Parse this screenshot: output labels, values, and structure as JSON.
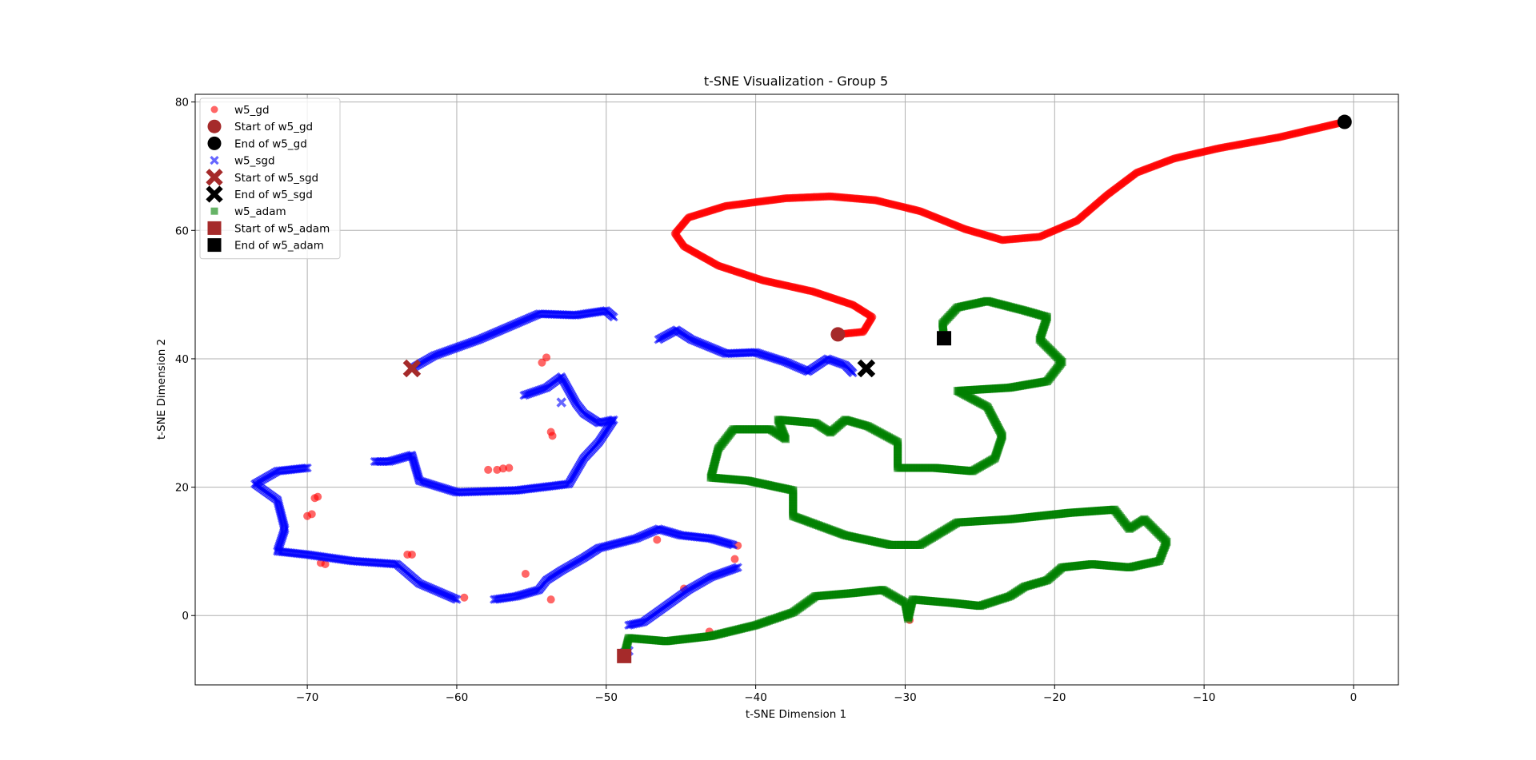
{
  "chart_data": {
    "type": "scatter",
    "title": "t-SNE Visualization - Group 5",
    "xlabel": "t-SNE Dimension 1",
    "ylabel": "t-SNE Dimension 2",
    "xlim": [
      -77.5,
      3
    ],
    "ylim": [
      -10.8,
      81.2
    ],
    "xticks": [
      -70,
      -60,
      -50,
      -40,
      -30,
      -20,
      -10,
      0
    ],
    "yticks": [
      0,
      20,
      40,
      60,
      80
    ],
    "xtick_labels": [
      "−70",
      "−60",
      "−50",
      "−40",
      "−30",
      "−20",
      "−10",
      "0"
    ],
    "ytick_labels": [
      "0",
      "20",
      "40",
      "60",
      "80"
    ],
    "grid": true,
    "legend_position": "top-left",
    "colors": {
      "gd": "#ff0000",
      "sgd": "#0000ff",
      "adam": "#008000",
      "start": "#a52a2a",
      "end": "#000000"
    },
    "legend": [
      {
        "label": "w5_gd",
        "marker": "circle",
        "color": "#ff0000",
        "alpha": 0.6,
        "big": false
      },
      {
        "label": "Start of w5_gd",
        "marker": "circle",
        "color": "#a52a2a",
        "alpha": 1,
        "big": true
      },
      {
        "label": "End of w5_gd",
        "marker": "circle",
        "color": "#000000",
        "alpha": 1,
        "big": true
      },
      {
        "label": "w5_sgd",
        "marker": "x",
        "color": "#0000ff",
        "alpha": 0.6,
        "big": false
      },
      {
        "label": "Start of w5_sgd",
        "marker": "x",
        "color": "#a52a2a",
        "alpha": 1,
        "big": true
      },
      {
        "label": "End of w5_sgd",
        "marker": "x",
        "color": "#000000",
        "alpha": 1,
        "big": true
      },
      {
        "label": "w5_adam",
        "marker": "square",
        "color": "#008000",
        "alpha": 0.6,
        "big": false
      },
      {
        "label": "Start of w5_adam",
        "marker": "square",
        "color": "#a52a2a",
        "alpha": 1,
        "big": true
      },
      {
        "label": "End of w5_adam",
        "marker": "square",
        "color": "#000000",
        "alpha": 1,
        "big": true
      }
    ],
    "series": [
      {
        "name": "w5_gd",
        "marker": "circle",
        "color": "#ff0000",
        "path": [
          [
            -34.5,
            43.8
          ],
          [
            -32.8,
            44.2
          ],
          [
            -32.2,
            46.5
          ],
          [
            -33.5,
            48.4
          ],
          [
            -36.2,
            50.5
          ],
          [
            -39.5,
            52.2
          ],
          [
            -42.5,
            54.5
          ],
          [
            -44.8,
            57.5
          ],
          [
            -45.4,
            59.5
          ],
          [
            -44.5,
            62.0
          ],
          [
            -42.0,
            63.8
          ],
          [
            -38.0,
            65.0
          ],
          [
            -35.0,
            65.3
          ],
          [
            -32.0,
            64.7
          ],
          [
            -29.0,
            63.0
          ],
          [
            -26.0,
            60.2
          ],
          [
            -23.5,
            58.5
          ],
          [
            -21.0,
            59.0
          ],
          [
            -18.5,
            61.5
          ],
          [
            -16.5,
            65.5
          ],
          [
            -14.5,
            69.0
          ],
          [
            -12.0,
            71.2
          ],
          [
            -9.0,
            72.8
          ],
          [
            -5.0,
            74.5
          ],
          [
            -0.6,
            76.9
          ]
        ],
        "scatter": [
          [
            -54.0,
            40.2
          ],
          [
            -54.3,
            39.4
          ],
          [
            -53.7,
            28.6
          ],
          [
            -53.6,
            28.0
          ],
          [
            -57.9,
            22.7
          ],
          [
            -57.3,
            22.7
          ],
          [
            -56.9,
            22.9
          ],
          [
            -56.5,
            23.0
          ],
          [
            -69.5,
            18.3
          ],
          [
            -69.3,
            18.5
          ],
          [
            -70.0,
            15.5
          ],
          [
            -69.7,
            15.8
          ],
          [
            -69.1,
            8.2
          ],
          [
            -68.8,
            8.0
          ],
          [
            -63.3,
            9.5
          ],
          [
            -63.0,
            9.5
          ],
          [
            -59.5,
            2.8
          ],
          [
            -55.4,
            6.5
          ],
          [
            -53.7,
            2.5
          ],
          [
            -46.6,
            11.8
          ],
          [
            -41.2,
            10.9
          ],
          [
            -41.4,
            8.8
          ],
          [
            -44.8,
            4.2
          ],
          [
            -43.1,
            -2.5
          ],
          [
            -29.7,
            -0.7
          ]
        ]
      },
      {
        "name": "w5_sgd",
        "marker": "x",
        "color": "#0000ff",
        "paths": [
          [
            [
              -63.0,
              38.5
            ],
            [
              -61.5,
              40.5
            ],
            [
              -58.5,
              43.0
            ],
            [
              -56.5,
              45.0
            ],
            [
              -54.5,
              47.0
            ],
            [
              -52.0,
              46.8
            ],
            [
              -50.0,
              47.5
            ],
            [
              -49.5,
              46.5
            ]
          ],
          [
            [
              -46.5,
              43.0
            ],
            [
              -45.3,
              44.5
            ],
            [
              -44.3,
              43.0
            ],
            [
              -42.0,
              40.8
            ],
            [
              -40.0,
              41.0
            ],
            [
              -38.0,
              39.5
            ],
            [
              -36.5,
              38.0
            ],
            [
              -35.2,
              40.0
            ],
            [
              -34.0,
              39.0
            ],
            [
              -33.5,
              37.8
            ]
          ],
          [
            [
              -55.5,
              34.3
            ],
            [
              -54.0,
              35.5
            ],
            [
              -53.0,
              37.2
            ],
            [
              -52.0,
              33.0
            ],
            [
              -51.5,
              31.5
            ],
            [
              -50.5,
              30.0
            ],
            [
              -49.5,
              30.5
            ],
            [
              -50.5,
              27.0
            ],
            [
              -51.5,
              24.5
            ],
            [
              -52.5,
              20.5
            ],
            [
              -56.0,
              19.5
            ],
            [
              -60.0,
              19.2
            ],
            [
              -62.5,
              21.0
            ],
            [
              -63.0,
              25.0
            ],
            [
              -64.5,
              24.0
            ],
            [
              -65.5,
              24.0
            ]
          ],
          [
            [
              -70.0,
              23.0
            ],
            [
              -72.0,
              22.5
            ],
            [
              -73.5,
              20.5
            ],
            [
              -72.0,
              18.0
            ],
            [
              -71.5,
              13.5
            ],
            [
              -72.0,
              10.0
            ],
            [
              -70.0,
              9.5
            ],
            [
              -67.0,
              8.5
            ],
            [
              -64.0,
              8.0
            ],
            [
              -62.5,
              5.0
            ],
            [
              -60.5,
              3.0
            ],
            [
              -60.0,
              2.5
            ]
          ],
          [
            [
              -57.5,
              2.5
            ],
            [
              -56.0,
              3.0
            ],
            [
              -54.5,
              4.0
            ],
            [
              -54.0,
              5.5
            ],
            [
              -53.0,
              7.0
            ],
            [
              -51.5,
              9.0
            ],
            [
              -50.5,
              10.5
            ],
            [
              -48.0,
              12.0
            ],
            [
              -46.5,
              13.5
            ],
            [
              -45.0,
              12.5
            ],
            [
              -43.0,
              12.0
            ],
            [
              -41.5,
              11.0
            ]
          ],
          [
            [
              -41.2,
              7.5
            ],
            [
              -43.0,
              6.0
            ],
            [
              -44.5,
              4.0
            ],
            [
              -46.0,
              1.5
            ],
            [
              -47.5,
              -1.0
            ],
            [
              -48.5,
              -1.5
            ]
          ]
        ],
        "scatter": [
          [
            -48.8,
            -5.8
          ],
          [
            -48.5,
            -5.5
          ],
          [
            -53.0,
            33.2
          ]
        ]
      },
      {
        "name": "w5_adam",
        "marker": "square",
        "color": "#008000",
        "path": [
          [
            -48.8,
            -6.3
          ],
          [
            -48.5,
            -3.5
          ],
          [
            -46.0,
            -4.0
          ],
          [
            -43.0,
            -3.2
          ],
          [
            -40.0,
            -1.5
          ],
          [
            -37.5,
            0.5
          ],
          [
            -36.0,
            3.0
          ],
          [
            -33.5,
            3.5
          ],
          [
            -31.5,
            4.0
          ],
          [
            -30.0,
            2.0
          ],
          [
            -29.8,
            -0.5
          ],
          [
            -29.5,
            2.5
          ],
          [
            -27.0,
            2.0
          ],
          [
            -25.0,
            1.5
          ],
          [
            -23.0,
            3.0
          ],
          [
            -22.0,
            4.5
          ],
          [
            -20.5,
            5.5
          ],
          [
            -19.5,
            7.5
          ],
          [
            -17.5,
            8.0
          ],
          [
            -15.0,
            7.5
          ],
          [
            -13.0,
            8.5
          ],
          [
            -12.5,
            11.5
          ],
          [
            -14.0,
            15.0
          ],
          [
            -15.0,
            13.5
          ],
          [
            -16.0,
            16.5
          ],
          [
            -19.0,
            16.0
          ],
          [
            -23.0,
            15.0
          ],
          [
            -26.5,
            14.5
          ],
          [
            -29.0,
            11.0
          ],
          [
            -31.0,
            11.0
          ],
          [
            -34.0,
            12.5
          ],
          [
            -37.5,
            15.5
          ],
          [
            -37.5,
            19.5
          ],
          [
            -40.5,
            21.0
          ],
          [
            -43.0,
            21.5
          ],
          [
            -42.5,
            26.0
          ],
          [
            -41.5,
            29.0
          ],
          [
            -39.0,
            29.0
          ],
          [
            -38.0,
            27.5
          ],
          [
            -38.5,
            30.5
          ],
          [
            -36.0,
            30.0
          ],
          [
            -35.0,
            28.5
          ],
          [
            -34.0,
            30.5
          ],
          [
            -32.5,
            29.5
          ],
          [
            -30.5,
            27.0
          ],
          [
            -30.5,
            23.0
          ],
          [
            -28.0,
            23.0
          ],
          [
            -25.5,
            22.5
          ],
          [
            -24.0,
            24.5
          ],
          [
            -23.5,
            28.0
          ],
          [
            -24.5,
            32.5
          ],
          [
            -26.5,
            35.0
          ],
          [
            -23.0,
            35.5
          ],
          [
            -20.5,
            36.5
          ],
          [
            -19.5,
            39.5
          ],
          [
            -21.0,
            43.0
          ],
          [
            -20.5,
            46.5
          ],
          [
            -22.0,
            47.5
          ],
          [
            -24.5,
            49.0
          ],
          [
            -26.5,
            48.0
          ],
          [
            -27.5,
            45.5
          ],
          [
            -27.4,
            43.2
          ]
        ]
      }
    ],
    "markers": [
      {
        "label": "Start of w5_gd",
        "marker": "circle",
        "x": -34.5,
        "y": 43.8,
        "color": "#a52a2a"
      },
      {
        "label": "End of w5_gd",
        "marker": "circle",
        "x": -0.6,
        "y": 76.9,
        "color": "#000000"
      },
      {
        "label": "Start of w5_sgd",
        "marker": "x",
        "x": -63.0,
        "y": 38.5,
        "color": "#a52a2a"
      },
      {
        "label": "End of w5_sgd",
        "marker": "x",
        "x": -32.6,
        "y": 38.5,
        "color": "#000000"
      },
      {
        "label": "Start of w5_adam",
        "marker": "square",
        "x": -48.8,
        "y": -6.3,
        "color": "#a52a2a"
      },
      {
        "label": "End of w5_adam",
        "marker": "square",
        "x": -27.4,
        "y": 43.2,
        "color": "#000000"
      }
    ]
  }
}
